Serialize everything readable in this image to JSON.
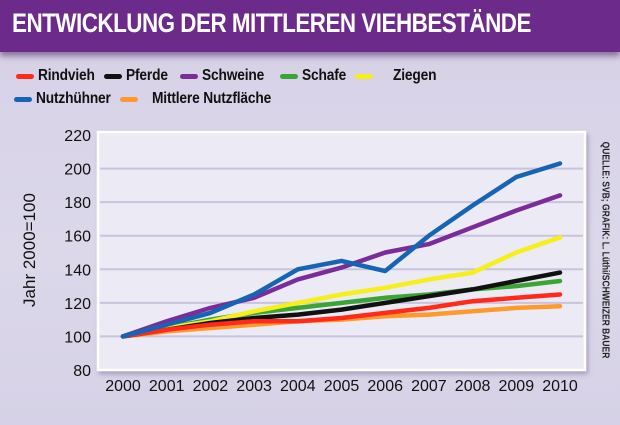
{
  "header": {
    "title": "ENTWICKLUNG DER MITTLEREN VIEHBESTÄNDE"
  },
  "source_note": "QUELLE: SVB; GRAFIK: L. Lüthi/SCHWEIZER BAUER",
  "colors": {
    "title_bar": "#6c2b8a",
    "title_text": "#ffffff",
    "plot_background": "#ecebf4",
    "gridline": "#c9c3dd"
  },
  "chart_data": {
    "type": "line",
    "title": "ENTWICKLUNG DER MITTLEREN VIEHBESTÄNDE",
    "xlabel": "",
    "ylabel": "Jahr 2000=100",
    "x": [
      2000,
      2001,
      2002,
      2003,
      2004,
      2005,
      2006,
      2007,
      2008,
      2009,
      2010
    ],
    "x_tick_labels": [
      "2000",
      "2001",
      "2002",
      "2003",
      "2004",
      "2005",
      "2006",
      "2007",
      "2008",
      "2009",
      "2010"
    ],
    "ylim": [
      80,
      220
    ],
    "y_ticks": [
      80,
      100,
      120,
      140,
      160,
      180,
      200,
      220
    ],
    "y_tick_labels": [
      "80",
      "100",
      "120",
      "140",
      "160",
      "180",
      "200",
      "220"
    ],
    "grid": "horizontal",
    "legend_position": "top",
    "series": [
      {
        "name": "Rindvieh",
        "color": "#ff2a1a",
        "values": [
          100,
          104,
          107,
          109,
          109,
          111,
          114,
          117,
          121,
          123,
          125
        ]
      },
      {
        "name": "Pferde",
        "color": "#111111",
        "values": [
          100,
          104,
          108,
          111,
          113,
          116,
          120,
          124,
          128,
          133,
          138
        ]
      },
      {
        "name": "Schweine",
        "color": "#7a2d9a",
        "values": [
          100,
          109,
          117,
          123,
          134,
          141,
          150,
          155,
          165,
          175,
          184
        ]
      },
      {
        "name": "Schafe",
        "color": "#3aa535",
        "values": [
          100,
          105,
          110,
          114,
          117,
          120,
          123,
          125,
          128,
          130,
          133
        ]
      },
      {
        "name": "Ziegen",
        "color": "#f5ef1a",
        "values": [
          100,
          105,
          109,
          115,
          120,
          125,
          129,
          134,
          138,
          150,
          159
        ]
      },
      {
        "name": "Nutzhühner",
        "color": "#1565b4",
        "values": [
          100,
          107,
          114,
          125,
          140,
          145,
          139,
          160,
          178,
          195,
          203
        ]
      },
      {
        "name": "Mittlere Nutzfläche",
        "color": "#ff9a2a",
        "values": [
          100,
          103,
          105,
          107,
          109,
          110,
          112,
          113,
          115,
          117,
          118
        ]
      }
    ]
  }
}
